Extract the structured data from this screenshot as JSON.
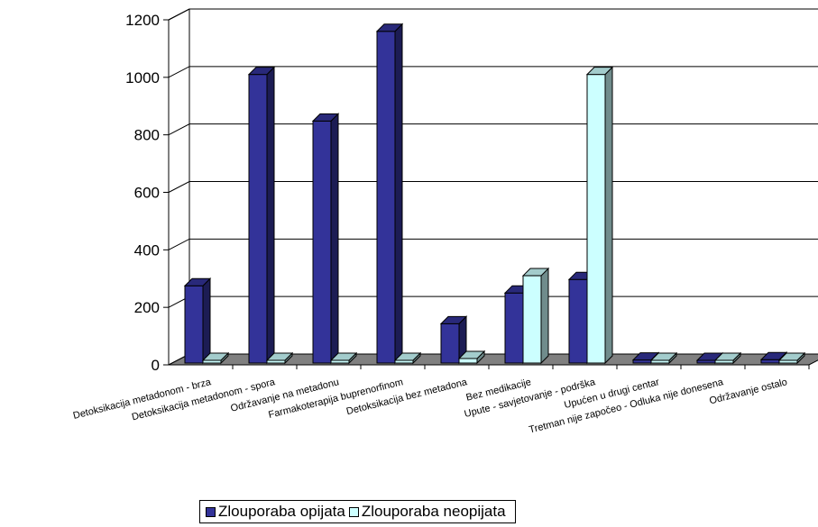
{
  "chart_data": {
    "type": "bar",
    "categories": [
      "Detoksikacija metadonom - brza",
      "Detoksikacija metadonom - spora",
      "Održavanje na metadonu",
      "Farmakoterapija buprenorfinom",
      "Detoksikacija bez metadona",
      "Bez medikacije",
      "Upute - savjetovanje - podrška",
      "Upućen u drugi centar",
      "Tretman nije započeo - Odluka nije donesena",
      "Održavanje ostalo"
    ],
    "series": [
      {
        "name": "Zlouporaba opijata",
        "color": "#333399",
        "values": [
          275,
          1010,
          848,
          1160,
          143,
          250,
          297,
          17,
          12,
          18
        ]
      },
      {
        "name": "Zlouporaba neopijata",
        "color": "#ccffff",
        "values": [
          0,
          0,
          0,
          0,
          22,
          310,
          1010,
          12,
          8,
          2
        ]
      }
    ],
    "ylim": [
      0,
      1200
    ],
    "yticks": [
      0,
      200,
      400,
      600,
      800,
      1000,
      1200
    ],
    "gridlines": true,
    "style": "3d-clustered-column",
    "legend_position": "bottom"
  }
}
